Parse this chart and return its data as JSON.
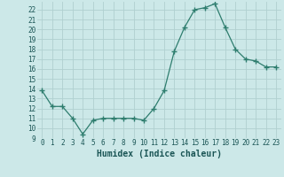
{
  "x": [
    0,
    1,
    2,
    3,
    4,
    5,
    6,
    7,
    8,
    9,
    10,
    11,
    12,
    13,
    14,
    15,
    16,
    17,
    18,
    19,
    20,
    21,
    22,
    23
  ],
  "y": [
    13.8,
    12.2,
    12.2,
    11.0,
    9.4,
    10.8,
    11.0,
    11.0,
    11.0,
    11.0,
    10.8,
    12.0,
    13.8,
    17.8,
    20.2,
    22.0,
    22.2,
    22.6,
    20.2,
    18.0,
    17.0,
    16.8,
    16.2,
    16.2
  ],
  "line_color": "#2e7d6e",
  "marker": "+",
  "marker_size": 4,
  "bg_color": "#cce8e8",
  "grid_color": "#b0d0d0",
  "xlabel": "Humidex (Indice chaleur)",
  "xlim": [
    -0.5,
    23.5
  ],
  "ylim": [
    9,
    22.8
  ],
  "yticks": [
    9,
    10,
    11,
    12,
    13,
    14,
    15,
    16,
    17,
    18,
    19,
    20,
    21,
    22
  ],
  "xticks": [
    0,
    1,
    2,
    3,
    4,
    5,
    6,
    7,
    8,
    9,
    10,
    11,
    12,
    13,
    14,
    15,
    16,
    17,
    18,
    19,
    20,
    21,
    22,
    23
  ],
  "tick_fontsize": 5.5,
  "xlabel_fontsize": 7.0,
  "label_color": "#1a5555"
}
